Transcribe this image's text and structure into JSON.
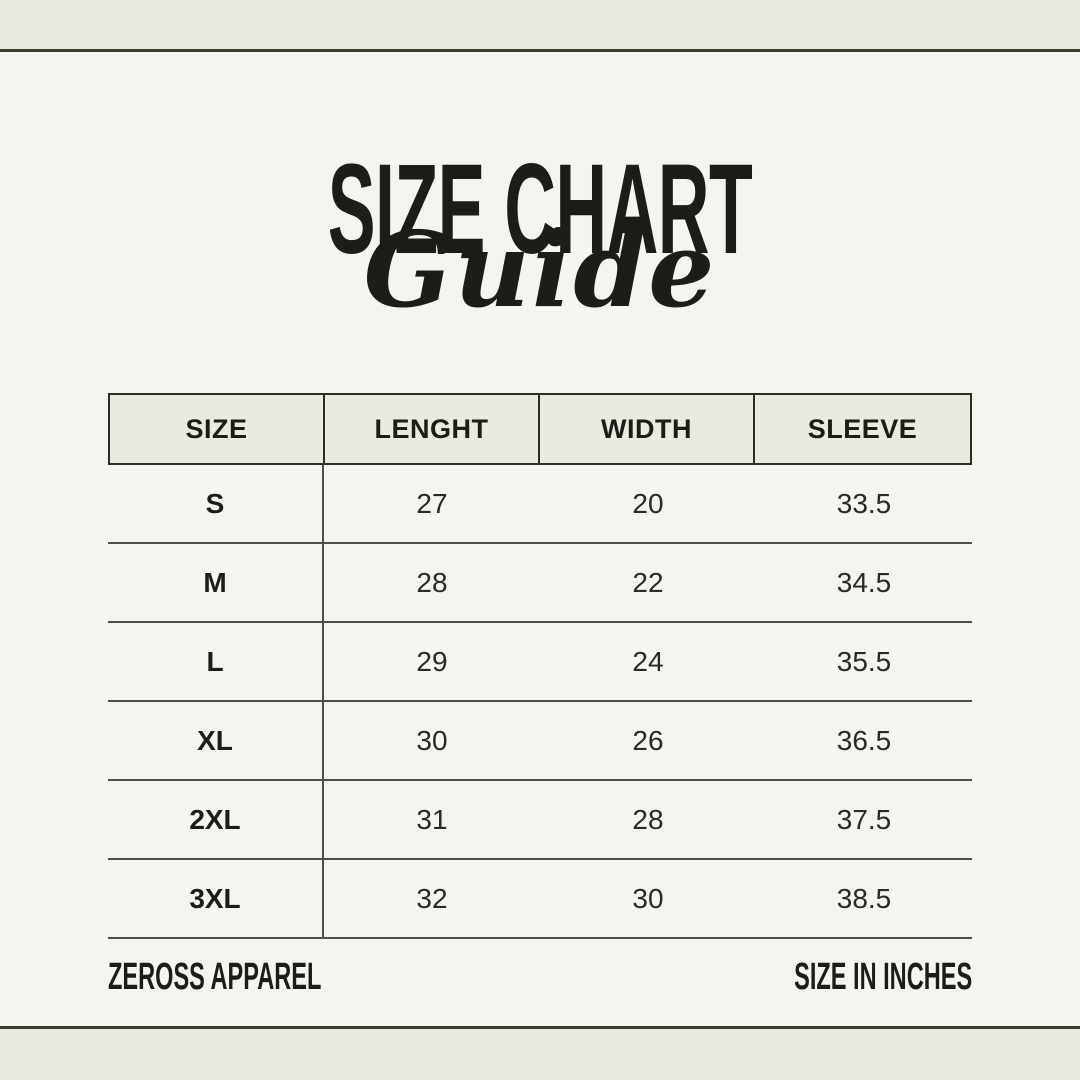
{
  "page": {
    "background_color": "#f4f4f1",
    "band_color": "#e9ebe1",
    "rule_color": "#3b3a30",
    "ink_color": "#1d1c18"
  },
  "title": {
    "main": "SIZE CHART",
    "script": "Guide"
  },
  "table": {
    "headers": [
      "SIZE",
      "LENGHT",
      "WIDTH",
      "SLEEVE"
    ],
    "rows": [
      [
        "S",
        "27",
        "20",
        "33.5"
      ],
      [
        "M",
        "28",
        "22",
        "34.5"
      ],
      [
        "L",
        "29",
        "24",
        "35.5"
      ],
      [
        "XL",
        "30",
        "26",
        "36.5"
      ],
      [
        "2XL",
        "31",
        "28",
        "37.5"
      ],
      [
        "3XL",
        "32",
        "30",
        "38.5"
      ]
    ],
    "header_fill": "#e9eae0",
    "border_color": "#2e2d27",
    "row_line_color": "#504f47"
  },
  "footer": {
    "left": "ZEROSS APPAREL",
    "right": "SIZE IN INCHES"
  }
}
